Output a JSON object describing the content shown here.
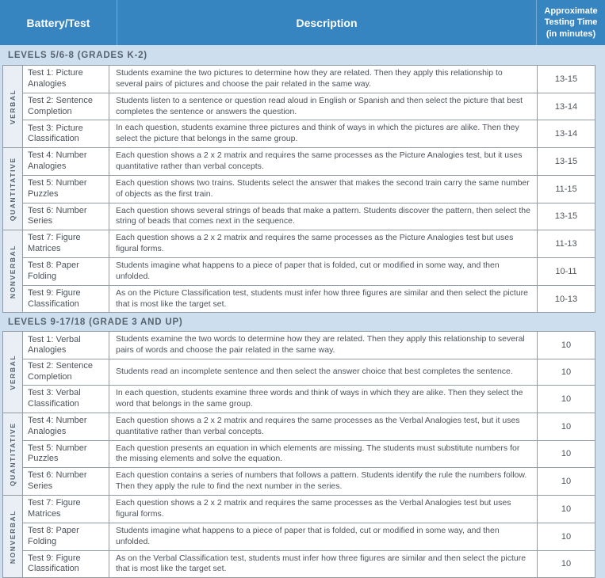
{
  "header": {
    "col_battery": "Battery/Test",
    "col_description": "Description",
    "col_time": "Approximate Testing Time (in minutes)"
  },
  "sections": [
    {
      "title": "LEVELS 5/6-8 (GRADES K-2)",
      "groups": [
        {
          "label": "VERBAL",
          "rows": [
            {
              "name": "Test 1: Picture Analogies",
              "desc": "Students examine the two pictures to determine how they are related. Then they apply this relationship to several pairs of pictures and choose the pair related in the same way.",
              "time": "13-15"
            },
            {
              "name": "Test 2: Sentence Completion",
              "desc": "Students listen to a sentence or question read aloud in English or Spanish and then select the picture that best completes the sentence or answers the question.",
              "time": "13-14"
            },
            {
              "name": "Test 3: Picture Classification",
              "desc": "In each question, students examine three pictures and think of ways in which the pictures are alike. Then they select the picture that belongs in the same group.",
              "time": "13-14"
            }
          ]
        },
        {
          "label": "QUANTITATIVE",
          "rows": [
            {
              "name": "Test 4: Number Analogies",
              "desc": "Each question shows a 2 x 2 matrix and requires the same processes as the Picture Analogies test, but it uses quantitative rather than verbal concepts.",
              "time": "13-15"
            },
            {
              "name": "Test 5: Number Puzzles",
              "desc": "Each question shows two trains. Students select the answer that makes the second train carry the same number of objects as the first train.",
              "time": "11-15"
            },
            {
              "name": "Test 6: Number Series",
              "desc": "Each question shows several strings of beads that make a pattern. Students discover the pattern, then select the string of beads that comes next in the sequence.",
              "time": "13-15"
            }
          ]
        },
        {
          "label": "NONVERBAL",
          "rows": [
            {
              "name": "Test 7: Figure Matrices",
              "desc": "Each question shows a 2 x 2 matrix and requires the same processes as the Picture Analogies test but uses figural forms.",
              "time": "11-13"
            },
            {
              "name": "Test 8: Paper Folding",
              "desc": "Students imagine what happens to a piece of paper that is folded, cut or modified in some way, and then unfolded.",
              "time": "10-11"
            },
            {
              "name": "Test 9: Figure Classification",
              "desc": "As on the Picture Classification test, students must infer how three figures are similar and then select the picture that is most like the target set.",
              "time": "10-13"
            }
          ]
        }
      ]
    },
    {
      "title": "LEVELS 9-17/18 (GRADE 3 AND UP)",
      "groups": [
        {
          "label": "VERBAL",
          "rows": [
            {
              "name": "Test 1: Verbal Analogies",
              "desc": "Students examine the two words to determine how they are related. Then they apply this relationship to several pairs of words and choose the pair related in the same way.",
              "time": "10"
            },
            {
              "name": "Test 2: Sentence Completion",
              "desc": "Students read an incomplete sentence and then select the answer choice that best completes the sentence.",
              "time": "10"
            },
            {
              "name": "Test 3: Verbal Classification",
              "desc": "In each question, students examine three words and think of ways in which they are alike. Then they select the word that belongs in the same group.",
              "time": "10"
            }
          ]
        },
        {
          "label": "QUANTITATIVE",
          "rows": [
            {
              "name": "Test 4: Number Analogies",
              "desc": "Each question shows a 2 x 2 matrix and requires the same processes as the Verbal Analogies test, but it uses quantitative rather than verbal concepts.",
              "time": "10"
            },
            {
              "name": "Test 5: Number Puzzles",
              "desc": "Each question presents an equation in which elements are missing. The students must substitute numbers for the missing elements and solve the equation.",
              "time": "10"
            },
            {
              "name": "Test 6: Number Series",
              "desc": "Each question contains a series of numbers that follows a pattern. Students identify the rule the numbers follow. Then they apply the rule to find the next number in the series.",
              "time": "10"
            }
          ]
        },
        {
          "label": "NONVERBAL",
          "rows": [
            {
              "name": "Test 7: Figure Matrices",
              "desc": "Each question shows a 2 x 2 matrix and requires the same processes as the Verbal Analogies test but uses figural forms.",
              "time": "10"
            },
            {
              "name": "Test 8: Paper Folding",
              "desc": "Students imagine what happens to a piece of paper that is folded, cut or modified in some way, and then unfolded.",
              "time": "10"
            },
            {
              "name": "Test 9: Figure Classification",
              "desc": "As on the Verbal Classification test, students must infer how three figures are similar and then select the picture that is most like the target set.",
              "time": "10"
            }
          ]
        }
      ]
    }
  ],
  "colors": {
    "header_bg": "#3684c0",
    "header_text": "#ffffff",
    "page_bg": "#cddfee",
    "group_label_bg": "#e9eff5",
    "cell_border": "#929ba3",
    "body_text": "#4b535b",
    "band_text": "#57626d"
  }
}
